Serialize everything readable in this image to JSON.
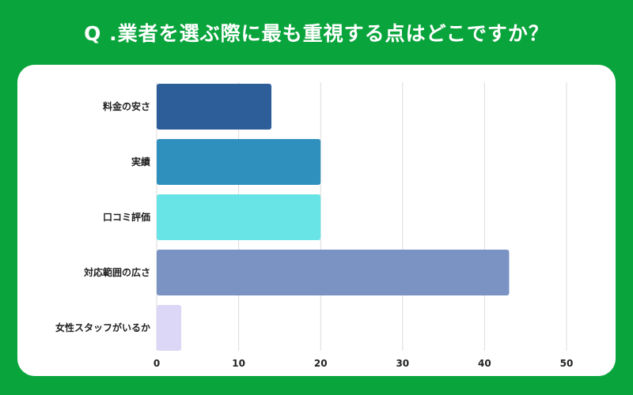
{
  "header": {
    "title": "Q .業者を選ぶ際に最も重視する点はどこですか？"
  },
  "colors": {
    "background": "#0aa43c",
    "card": "#ffffff",
    "grid": "#dcdcdc"
  },
  "chart_data": {
    "type": "bar",
    "orientation": "horizontal",
    "categories": [
      "料金の安さ",
      "実績",
      "口コミ評価",
      "対応範囲の広さ",
      "女性スタッフがいるか"
    ],
    "values": [
      14,
      20,
      20,
      43,
      3
    ],
    "bar_colors": [
      "#2e5e99",
      "#2f8fbd",
      "#69e4e6",
      "#7b93c3",
      "#dcd6f7"
    ],
    "xlim": [
      0,
      50
    ],
    "xticks": [
      0,
      10,
      20,
      30,
      40,
      50
    ],
    "grid": true,
    "legend": "none"
  }
}
